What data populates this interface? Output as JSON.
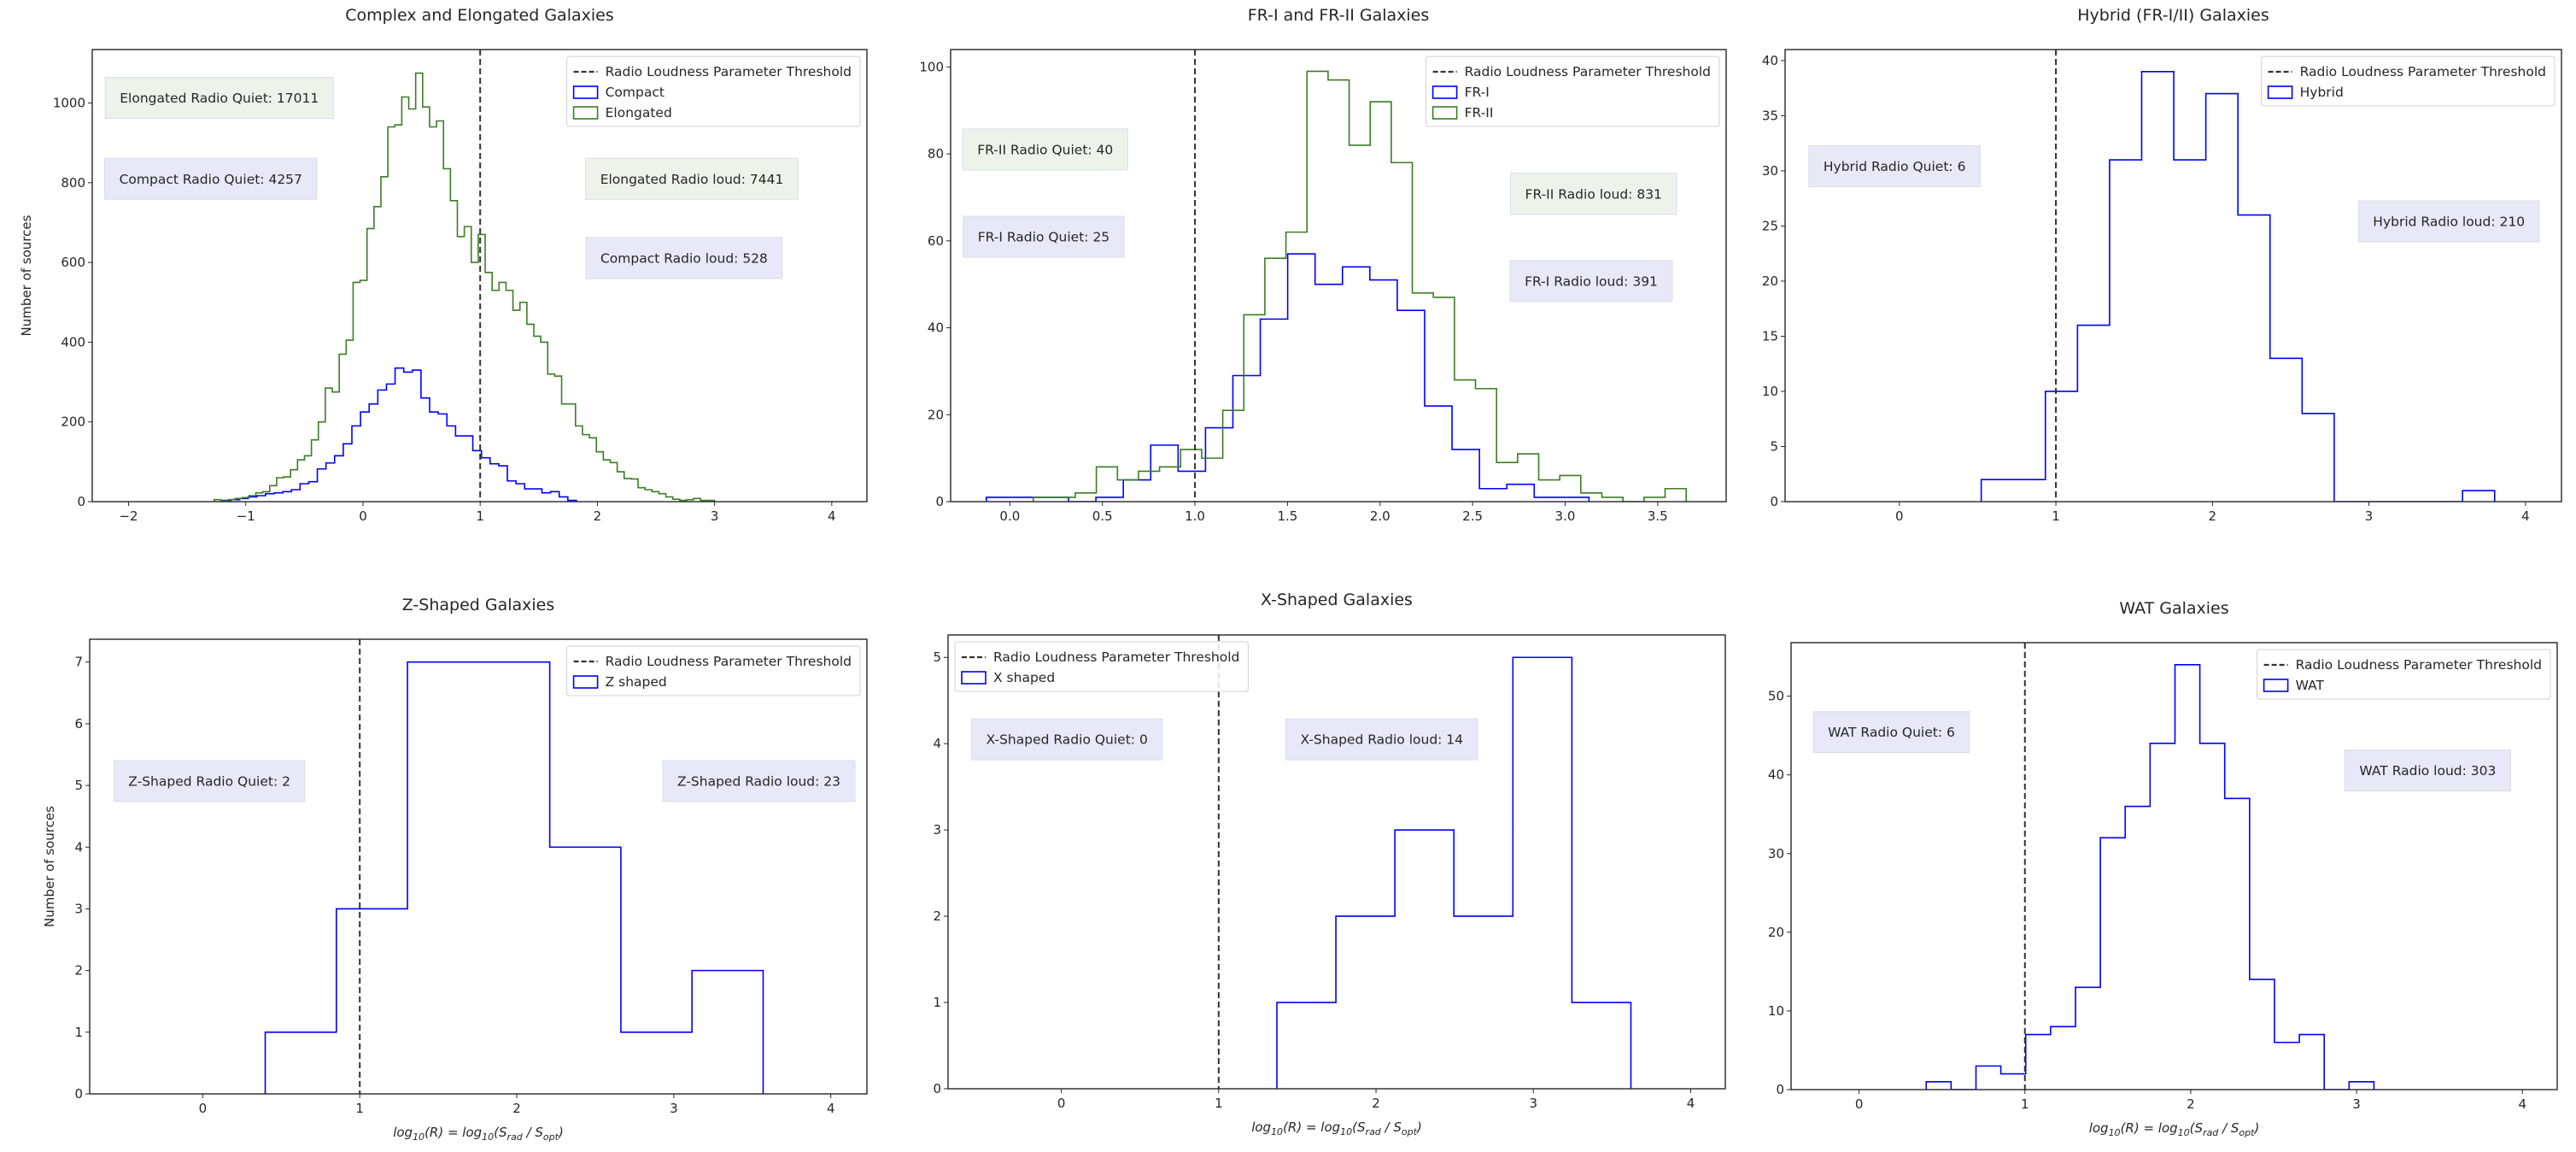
{
  "colors": {
    "blue_series": "#0000ff",
    "green_series": "#3b7d23",
    "threshold": "#333333",
    "annotation_green": "#edf3ea",
    "annotation_blue": "#e8e8f8"
  },
  "chart_data": [
    {
      "type": "histogram-step",
      "title": "Complex and Elongated Galaxies",
      "xlabel": [],
      "ylabel": "Number of sources",
      "xlim": [
        -2.31,
        4.3
      ],
      "ylim": [
        0,
        1134
      ],
      "xticks": [
        -2,
        -1,
        0,
        1,
        2,
        3,
        4
      ],
      "xtick_labels": [
        "−2",
        "−1",
        "0",
        "1",
        "2",
        "3",
        "4"
      ],
      "yticks": [
        0,
        200,
        400,
        600,
        800,
        1000
      ],
      "ytick_labels": [
        "0",
        "200",
        "400",
        "600",
        "800",
        "1000"
      ],
      "threshold": 1,
      "legend": {
        "position": "upper right",
        "threshold_label": "Radio Loudness Parameter Threshold"
      },
      "series": [
        {
          "name": "Compact",
          "color": "#0000ff",
          "bin_start": -1.2,
          "bin_width": 0.0737,
          "counts": [
            3,
            5,
            8,
            12,
            15,
            20,
            22,
            25,
            30,
            45,
            50,
            82,
            97,
            115,
            145,
            190,
            225,
            245,
            280,
            295,
            335,
            325,
            330,
            260,
            225,
            220,
            190,
            165,
            165,
            128,
            110,
            95,
            90,
            52,
            45,
            32,
            32,
            22,
            25,
            12,
            3
          ]
        },
        {
          "name": "Elongated",
          "color": "#3b7d23",
          "bin_start": -1.27,
          "bin_width": 0.0593,
          "counts": [
            5,
            2,
            5,
            8,
            10,
            15,
            22,
            25,
            40,
            60,
            62,
            80,
            105,
            115,
            155,
            200,
            285,
            275,
            370,
            405,
            550,
            555,
            685,
            740,
            815,
            940,
            945,
            1015,
            985,
            1075,
            990,
            940,
            955,
            835,
            755,
            665,
            690,
            600,
            670,
            575,
            530,
            550,
            530,
            480,
            500,
            445,
            415,
            400,
            320,
            315,
            245,
            245,
            190,
            168,
            160,
            125,
            105,
            98,
            75,
            58,
            57,
            35,
            30,
            25,
            20,
            12,
            6,
            3,
            5,
            8,
            3,
            3
          ]
        }
      ],
      "annotations": [
        {
          "text": "Elongated Radio Quiet: 17011",
          "color": "#edf3ea"
        },
        {
          "text": "Compact Radio Quiet: 4257",
          "color": "#e8e8f8"
        },
        {
          "text": "Elongated Radio loud: 7441",
          "color": "#edf3ea"
        },
        {
          "text": "Compact Radio loud: 528",
          "color": "#e8e8f8"
        }
      ]
    },
    {
      "type": "histogram-step",
      "title": "FR-I and FR-II Galaxies",
      "xlabel": [],
      "ylabel": "",
      "xlim": [
        -0.32,
        3.87
      ],
      "ylim": [
        0,
        104
      ],
      "xticks": [
        0,
        0.5,
        1,
        1.5,
        2,
        2.5,
        3,
        3.5
      ],
      "xtick_labels": [
        "0.0",
        "0.5",
        "1.0",
        "1.5",
        "2.0",
        "2.5",
        "3.0",
        "3.5"
      ],
      "yticks": [
        0,
        20,
        40,
        60,
        80,
        100
      ],
      "ytick_labels": [
        "0",
        "20",
        "40",
        "60",
        "80",
        "100"
      ],
      "threshold": 1,
      "legend": {
        "position": "upper right",
        "threshold_label": "Radio Loudness Parameter Threshold"
      },
      "series": [
        {
          "name": "FR-I",
          "color": "#0000ff",
          "bin_start": -0.127,
          "bin_width": 0.148,
          "counts": [
            1,
            1,
            1,
            0,
            1,
            5,
            13,
            7,
            17,
            29,
            42,
            57,
            50,
            54,
            51,
            44,
            22,
            12,
            3,
            4,
            1,
            1
          ]
        },
        {
          "name": "FR-II",
          "color": "#3b7d23",
          "bin_start": 0.126,
          "bin_width": 0.1138,
          "counts": [
            1,
            1,
            2,
            8,
            5,
            7,
            8,
            12,
            10,
            21,
            43,
            56,
            62,
            99,
            97,
            82,
            92,
            78,
            48,
            47,
            28,
            26,
            9,
            11,
            5,
            6,
            2,
            1,
            0,
            1,
            3
          ]
        }
      ],
      "annotations": [
        {
          "text": "FR-II Radio Quiet: 40",
          "color": "#edf3ea"
        },
        {
          "text": "FR-I Radio Quiet: 25",
          "color": "#e8e8f8"
        },
        {
          "text": "FR-II Radio loud: 831",
          "color": "#edf3ea"
        },
        {
          "text": "FR-I Radio loud: 391",
          "color": "#e8e8f8"
        }
      ]
    },
    {
      "type": "histogram-step",
      "title": "Hybrid (FR-I/II) Galaxies",
      "xlabel": [],
      "ylabel": "",
      "xlim": [
        -0.73,
        4.23
      ],
      "ylim": [
        0,
        41
      ],
      "xticks": [
        0,
        1,
        2,
        3,
        4
      ],
      "xtick_labels": [
        "0",
        "1",
        "2",
        "3",
        "4"
      ],
      "yticks": [
        0,
        5,
        10,
        15,
        20,
        25,
        30,
        35,
        40
      ],
      "ytick_labels": [
        "0",
        "5",
        "10",
        "15",
        "20",
        "25",
        "30",
        "35",
        "40"
      ],
      "threshold": 1,
      "legend": {
        "position": "upper right",
        "threshold_label": "Radio Loudness Parameter Threshold"
      },
      "series": [
        {
          "name": "Hybrid",
          "color": "#0000ff",
          "bin_start": 0.523,
          "bin_width": 0.205,
          "counts": [
            2,
            2,
            10,
            16,
            31,
            39,
            31,
            37,
            26,
            13,
            8,
            0,
            0,
            0,
            0,
            1
          ]
        }
      ],
      "annotations": [
        {
          "text": "Hybrid Radio Quiet: 6",
          "color": "#e8e8f8"
        },
        {
          "text": "Hybrid Radio loud: 210",
          "color": "#e8e8f8"
        }
      ]
    },
    {
      "type": "histogram-step",
      "title": "Z-Shaped Galaxies",
      "xlabel": [
        {
          "t": "log"
        },
        {
          "t": "10",
          "sub": true
        },
        {
          "t": "(R) = log"
        },
        {
          "t": "10",
          "sub": true
        },
        {
          "t": "(S"
        },
        {
          "t": "rad",
          "sub": true
        },
        {
          "t": " / S"
        },
        {
          "t": "opt",
          "sub": true
        },
        {
          "t": ")"
        }
      ],
      "ylabel": "Number of sources",
      "xlim": [
        -0.72,
        4.23
      ],
      "ylim": [
        0,
        7.37
      ],
      "xticks": [
        0,
        1,
        2,
        3,
        4
      ],
      "xtick_labels": [
        "0",
        "1",
        "2",
        "3",
        "4"
      ],
      "yticks": [
        0,
        1,
        2,
        3,
        4,
        5,
        6,
        7
      ],
      "ytick_labels": [
        "0",
        "1",
        "2",
        "3",
        "4",
        "5",
        "6",
        "7"
      ],
      "threshold": 1,
      "legend": {
        "position": "upper right",
        "threshold_label": "Radio Loudness Parameter Threshold"
      },
      "series": [
        {
          "name": "Z shaped",
          "color": "#0000ff",
          "bin_start": 0.398,
          "bin_width": 0.453,
          "counts": [
            1,
            3,
            7,
            7,
            4,
            1,
            2
          ]
        }
      ],
      "annotations": [
        {
          "text": "Z-Shaped Radio Quiet: 2",
          "color": "#e8e8f8"
        },
        {
          "text": "Z-Shaped Radio loud: 23",
          "color": "#e8e8f8"
        }
      ]
    },
    {
      "type": "histogram-step",
      "title": "X-Shaped Galaxies",
      "xlabel": [
        {
          "t": "log"
        },
        {
          "t": "10",
          "sub": true
        },
        {
          "t": "(R) = log"
        },
        {
          "t": "10",
          "sub": true
        },
        {
          "t": "(S"
        },
        {
          "t": "rad",
          "sub": true
        },
        {
          "t": " / S"
        },
        {
          "t": "opt",
          "sub": true
        },
        {
          "t": ")"
        }
      ],
      "ylabel": "",
      "xlim": [
        -0.72,
        4.22
      ],
      "ylim": [
        0,
        5.26
      ],
      "xticks": [
        0,
        1,
        2,
        3,
        4
      ],
      "xtick_labels": [
        "0",
        "1",
        "2",
        "3",
        "4"
      ],
      "yticks": [
        0,
        1,
        2,
        3,
        4,
        5
      ],
      "ytick_labels": [
        "0",
        "1",
        "2",
        "3",
        "4",
        "5"
      ],
      "threshold": 1,
      "legend": {
        "position": "upper left",
        "threshold_label": "Radio Loudness Parameter Threshold"
      },
      "series": [
        {
          "name": "X shaped",
          "color": "#0000ff",
          "bin_start": 1.37,
          "bin_width": 0.375,
          "counts": [
            1,
            2,
            3,
            2,
            5,
            1
          ]
        }
      ],
      "annotations": [
        {
          "text": "X-Shaped Radio Quiet: 0",
          "color": "#e8e8f8"
        },
        {
          "text": "X-Shaped Radio loud: 14",
          "color": "#e8e8f8"
        }
      ]
    },
    {
      "type": "histogram-step",
      "title": "WAT Galaxies",
      "xlabel": [
        {
          "t": "log"
        },
        {
          "t": "10",
          "sub": true
        },
        {
          "t": "(R) = log"
        },
        {
          "t": "10",
          "sub": true
        },
        {
          "t": "(S"
        },
        {
          "t": "rad",
          "sub": true
        },
        {
          "t": " / S"
        },
        {
          "t": "opt",
          "sub": true
        },
        {
          "t": ")"
        }
      ],
      "ylabel": "",
      "xlim": [
        -0.41,
        4.21
      ],
      "ylim": [
        0,
        56.8
      ],
      "xticks": [
        0,
        1,
        2,
        3,
        4
      ],
      "xtick_labels": [
        "0",
        "1",
        "2",
        "3",
        "4"
      ],
      "yticks": [
        0,
        10,
        20,
        30,
        40,
        50
      ],
      "ytick_labels": [
        "0",
        "10",
        "20",
        "30",
        "40",
        "50"
      ],
      "threshold": 1,
      "legend": {
        "position": "upper right",
        "threshold_label": "Radio Loudness Parameter Threshold"
      },
      "series": [
        {
          "name": "WAT",
          "color": "#0000ff",
          "bin_start": 0.405,
          "bin_width": 0.15,
          "counts": [
            1,
            0,
            3,
            2,
            7,
            8,
            13,
            32,
            36,
            44,
            54,
            44,
            37,
            14,
            6,
            7,
            0,
            1
          ]
        }
      ],
      "annotations": [
        {
          "text": "WAT Radio Quiet: 6",
          "color": "#e8e8f8"
        },
        {
          "text": "WAT Radio loud: 303",
          "color": "#e8e8f8"
        }
      ]
    }
  ]
}
